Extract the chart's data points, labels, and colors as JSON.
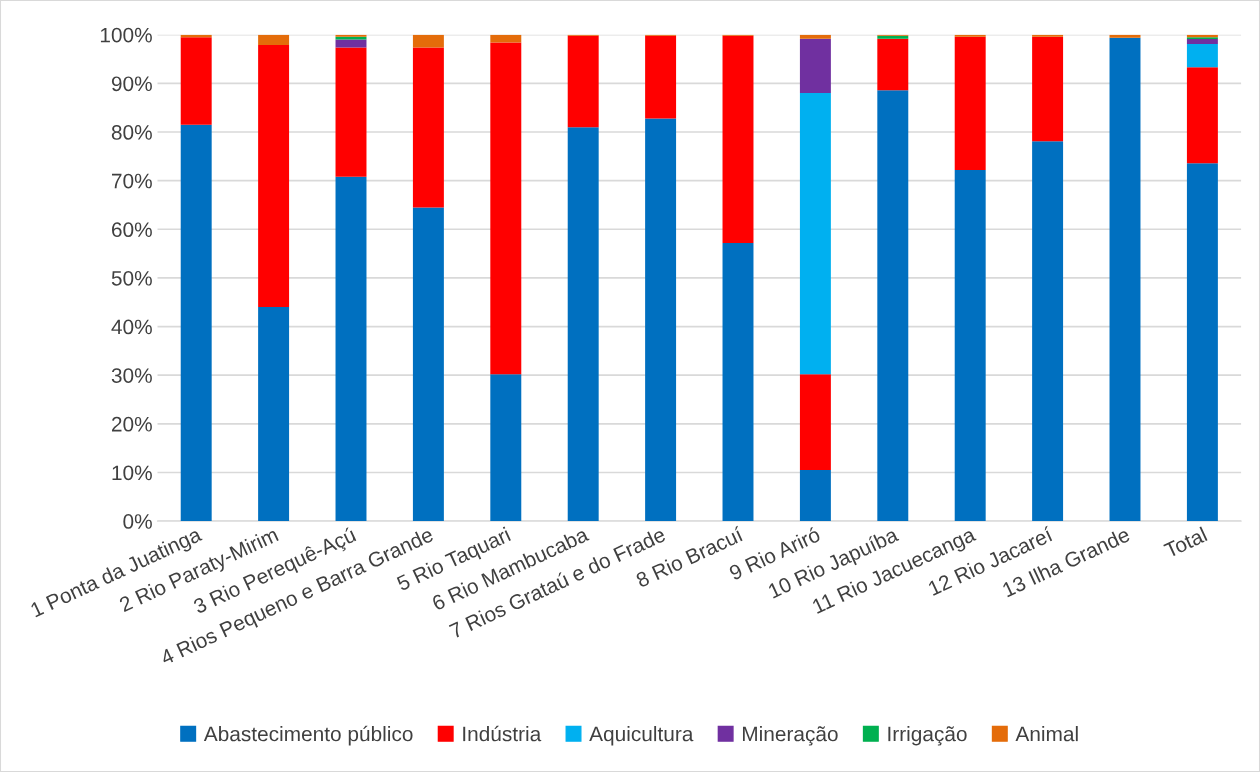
{
  "chart_data": {
    "type": "bar",
    "stacked": true,
    "legend": "bottom",
    "grid": "y",
    "categories": [
      "1 Ponta da Juatinga",
      "2 Rio Paraty-Mirim",
      "3 Rio Perequê-Açú",
      "4 Rios Pequeno e Barra Grande",
      "5 Rio Taquari",
      "6 Rio Mambucaba",
      "7 Rios Grataú e do Frade",
      "8 Rio Bracuí",
      "9 Rio Ariró",
      "10 Rio Japuíba",
      "11 Rio Jacuecanga",
      "12 Rio Jacareí",
      "13 Ilha Grande",
      "Total"
    ],
    "series": [
      {
        "name": "Abastecimento público",
        "color": "#0070c0",
        "values": [
          81.5,
          44,
          70.8,
          64.5,
          30.2,
          81,
          82.8,
          57.2,
          10.5,
          88.6,
          72.2,
          78.1,
          99.4,
          73.6
        ]
      },
      {
        "name": "Indústria",
        "color": "#ff0000",
        "values": [
          18,
          53.9,
          26.6,
          32.9,
          68.2,
          18.8,
          17,
          42.6,
          19.7,
          10.6,
          27.4,
          21.5,
          0,
          19.7
        ]
      },
      {
        "name": "Aquicultura",
        "color": "#00b0f0",
        "values": [
          0,
          0,
          0,
          0,
          0,
          0,
          0,
          0,
          57.8,
          0,
          0,
          0,
          0,
          4.8
        ]
      },
      {
        "name": "Mineração",
        "color": "#7030a0",
        "values": [
          0,
          0,
          1.6,
          0,
          0,
          0,
          0,
          0,
          11.2,
          0,
          0,
          0,
          0,
          1.0
        ]
      },
      {
        "name": "Irrigação",
        "color": "#00b050",
        "values": [
          0,
          0,
          0.6,
          0,
          0,
          0,
          0,
          0,
          0,
          0.6,
          0,
          0,
          0,
          0.4
        ]
      },
      {
        "name": "Animal",
        "color": "#e46c0a",
        "values": [
          0.5,
          2.1,
          0.4,
          2.6,
          1.6,
          0.2,
          0.2,
          0.2,
          0.8,
          0.2,
          0.4,
          0.4,
          0.6,
          0.5
        ]
      }
    ],
    "ylim": [
      0,
      100
    ],
    "yticks": [
      {
        "value": 0,
        "label": "0%"
      },
      {
        "value": 10,
        "label": "10%"
      },
      {
        "value": 20,
        "label": "20%"
      },
      {
        "value": 30,
        "label": "30%"
      },
      {
        "value": 40,
        "label": "40%"
      },
      {
        "value": 50,
        "label": "50%"
      },
      {
        "value": 60,
        "label": "60%"
      },
      {
        "value": 70,
        "label": "70%"
      },
      {
        "value": 80,
        "label": "80%"
      },
      {
        "value": 90,
        "label": "90%"
      },
      {
        "value": 100,
        "label": "100%"
      }
    ]
  }
}
